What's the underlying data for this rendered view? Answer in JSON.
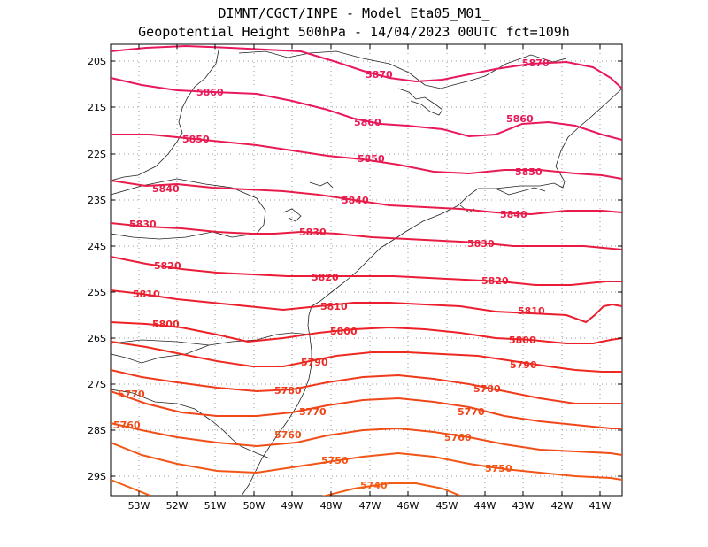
{
  "header": {
    "line1": "DIMNT/CGCT/INPE -  Model Eta05_M01_",
    "line2": "Geopotential Height 500hPa -  14/04/2023 00UTC fct=109h"
  },
  "axes": {
    "lat_labels": [
      "20S",
      "21S",
      "22S",
      "23S",
      "24S",
      "25S",
      "26S",
      "27S",
      "28S",
      "29S"
    ],
    "lon_labels": [
      "53W",
      "52W",
      "51W",
      "50W",
      "49W",
      "48W",
      "47W",
      "46W",
      "45W",
      "44W",
      "43W",
      "42W",
      "41W"
    ]
  },
  "contours": [
    {
      "label": "5870",
      "color": "#e8185a"
    },
    {
      "label": "5860",
      "color": "#e8185a"
    },
    {
      "label": "5850",
      "color": "#e81a52"
    },
    {
      "label": "5840",
      "color": "#e81c4a"
    },
    {
      "label": "5830",
      "color": "#e81c42"
    },
    {
      "label": "5820",
      "color": "#ea1c38"
    },
    {
      "label": "5810",
      "color": "#ea1e2e"
    },
    {
      "label": "5800",
      "color": "#ec2026"
    },
    {
      "label": "5790",
      "color": "#ee2a20"
    },
    {
      "label": "5780",
      "color": "#ef3a1c"
    },
    {
      "label": "5770",
      "color": "#f0461a"
    },
    {
      "label": "5760",
      "color": "#f04e18"
    },
    {
      "label": "5750",
      "color": "#f25616"
    },
    {
      "label": "5740",
      "color": "#f25c14"
    }
  ]
}
